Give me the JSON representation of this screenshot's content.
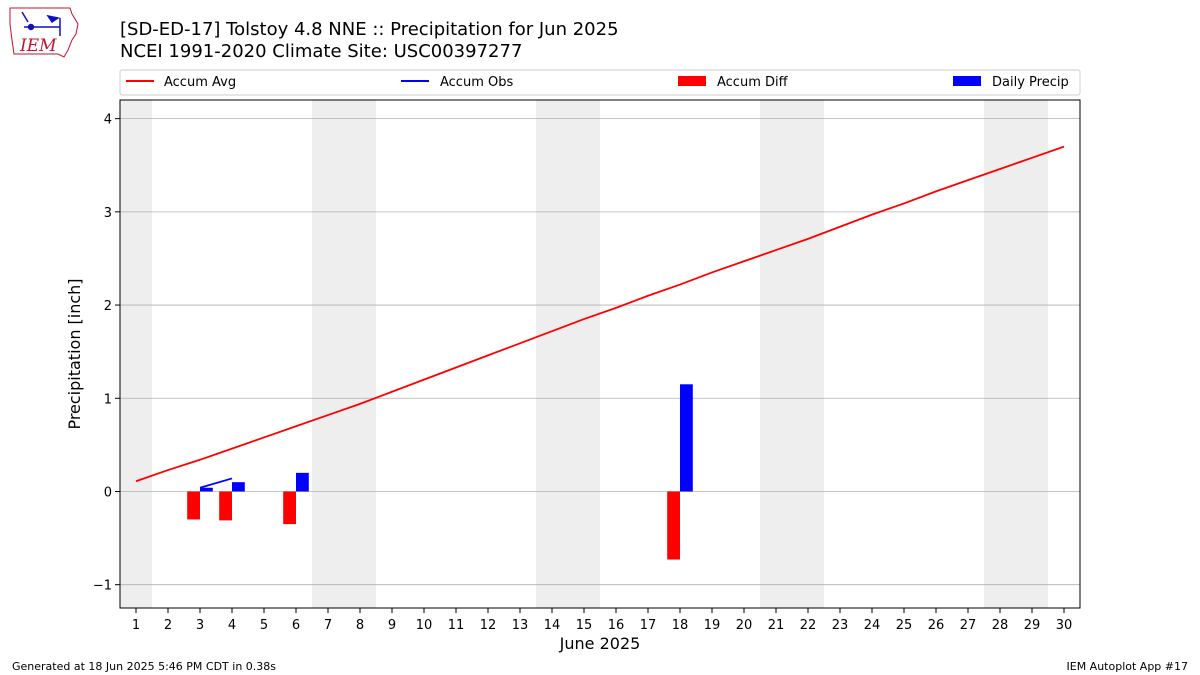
{
  "title_line1": "[SD-ED-17] Tolstoy 4.8 NNE :: Precipitation for Jun 2025",
  "title_line2": "NCEI 1991-2020 Climate Site: USC00397277",
  "logo": {
    "text": "IEM"
  },
  "footer": {
    "left": "Generated at 18 Jun 2025 5:46 PM CDT in 0.38s",
    "right": "IEM Autoplot App #17"
  },
  "chart_data": {
    "type": "bar",
    "title": "[SD-ED-17] Tolstoy 4.8 NNE :: Precipitation for Jun 2025",
    "subtitle": "NCEI 1991-2020 Climate Site: USC00397277",
    "xlabel": "June 2025",
    "ylabel": "Precipitation [inch]",
    "ylim": [
      -1.25,
      4.2
    ],
    "xlim": [
      0.5,
      30.5
    ],
    "yticks": [
      -1,
      0,
      1,
      2,
      3,
      4
    ],
    "ytick_labels": [
      "−1",
      "0",
      "1",
      "2",
      "3",
      "4"
    ],
    "categories": [
      "1",
      "2",
      "3",
      "4",
      "5",
      "6",
      "7",
      "8",
      "9",
      "10",
      "11",
      "12",
      "13",
      "14",
      "15",
      "16",
      "17",
      "18",
      "19",
      "20",
      "21",
      "22",
      "23",
      "24",
      "25",
      "26",
      "27",
      "28",
      "29",
      "30"
    ],
    "grid": "horizontal",
    "legend": {
      "placement": "top",
      "entries": [
        "Accum Avg",
        "Accum Obs",
        "Accum Diff",
        "Daily Precip"
      ]
    },
    "weekend_bands": [
      [
        0.5,
        1.5
      ],
      [
        6.5,
        8.5
      ],
      [
        13.5,
        15.5
      ],
      [
        20.5,
        22.5
      ],
      [
        27.5,
        29.5
      ]
    ],
    "colors": {
      "avg": "#ff0000",
      "obs": "#0000ff",
      "diff": "#ff0000",
      "daily": "#0000ff",
      "band": "#eeeeee",
      "grid": "#b0b0b0"
    },
    "series": [
      {
        "name": "Accum Avg",
        "kind": "line",
        "x": [
          1,
          2,
          3,
          4,
          5,
          6,
          7,
          8,
          9,
          10,
          11,
          12,
          13,
          14,
          15,
          16,
          17,
          18,
          19,
          20,
          21,
          22,
          23,
          24,
          25,
          26,
          27,
          28,
          29,
          30
        ],
        "values": [
          0.11,
          0.23,
          0.34,
          0.46,
          0.58,
          0.7,
          0.82,
          0.94,
          1.07,
          1.2,
          1.33,
          1.46,
          1.59,
          1.72,
          1.85,
          1.97,
          2.1,
          2.22,
          2.35,
          2.47,
          2.59,
          2.71,
          2.84,
          2.97,
          3.09,
          3.22,
          3.34,
          3.46,
          3.58,
          3.7
        ]
      },
      {
        "name": "Accum Obs",
        "kind": "line",
        "x": [
          3,
          4
        ],
        "values": [
          0.04,
          0.14
        ]
      },
      {
        "name": "Accum Diff",
        "kind": "bar",
        "x": [
          3,
          4,
          6,
          18
        ],
        "values": [
          -0.3,
          -0.31,
          -0.35,
          -0.73
        ]
      },
      {
        "name": "Daily Precip",
        "kind": "bar",
        "x": [
          3,
          4,
          6,
          18
        ],
        "values": [
          0.04,
          0.1,
          0.2,
          1.15
        ]
      }
    ]
  }
}
